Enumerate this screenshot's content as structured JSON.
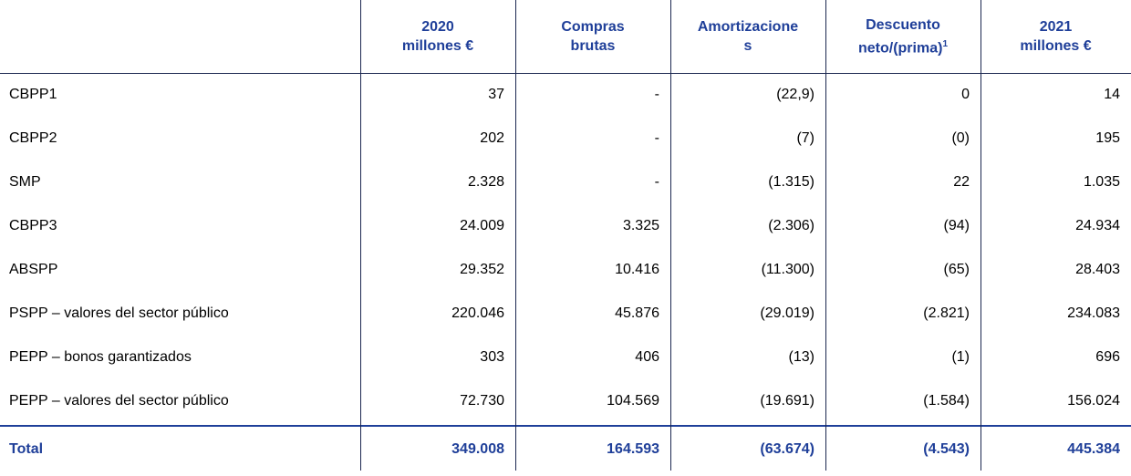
{
  "header": [
    {
      "lines": [
        "2020",
        "millones €"
      ]
    },
    {
      "lines": [
        "Compras",
        "brutas"
      ]
    },
    {
      "lines": [
        "Amortizacione",
        "s"
      ]
    },
    {
      "lines": [
        "Descuento",
        "neto/(prima)"
      ],
      "sup": "1"
    },
    {
      "lines": [
        "2021",
        "millones €"
      ]
    }
  ],
  "rows": [
    [
      "CBPP1",
      "37",
      "-",
      "(22,9)",
      "0",
      "14"
    ],
    [
      "CBPP2",
      "202",
      "-",
      "(7)",
      "(0)",
      "195"
    ],
    [
      "SMP",
      "2.328",
      "-",
      "(1.315)",
      "22",
      "1.035"
    ],
    [
      "CBPP3",
      "24.009",
      "3.325",
      "(2.306)",
      "(94)",
      "24.934"
    ],
    [
      "ABSPP",
      "29.352",
      "10.416",
      "(11.300)",
      "(65)",
      "28.403"
    ],
    [
      "PSPP – valores del sector público",
      "220.046",
      "45.876",
      "(29.019)",
      "(2.821)",
      "234.083"
    ],
    [
      "PEPP – bonos garantizados",
      "303",
      "406",
      "(13)",
      "(1)",
      "696"
    ],
    [
      "PEPP – valores del sector público",
      "72.730",
      "104.569",
      "(19.691)",
      "(1.584)",
      "156.024"
    ]
  ],
  "total": [
    "Total",
    "349.008",
    "164.593",
    "(63.674)",
    "(4.543)",
    "445.384"
  ]
}
